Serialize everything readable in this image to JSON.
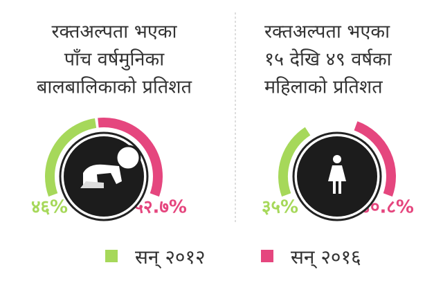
{
  "legend": [
    {
      "name": "सन् २०१२",
      "color": "#a6d85a"
    },
    {
      "name": "सन् २०१६",
      "color": "#e5467e"
    }
  ],
  "chart_data": [
    {
      "type": "gauge",
      "title": [
        "रक्तअल्पता भएका",
        "पाँच वर्षमुनिका",
        "बालबालिकाको प्रतिशत"
      ],
      "ylim": [
        0,
        100
      ],
      "series": [
        {
          "values": [
            46
          ],
          "value_labels": [
            "४६%"
          ]
        },
        {
          "values": [
            52.7
          ],
          "value_labels": [
            "५२.७%"
          ]
        }
      ]
    },
    {
      "type": "gauge",
      "title": [
        "रक्तअल्पता भएका",
        "१५ देखि ४९ वर्षका",
        "महिलाको प्रतिशत"
      ],
      "ylim": [
        0,
        100
      ],
      "series": [
        {
          "values": [
            35
          ],
          "value_labels": [
            "३५%"
          ]
        },
        {
          "values": [
            40.8
          ],
          "value_labels": [
            "४०.८%"
          ]
        }
      ]
    }
  ]
}
